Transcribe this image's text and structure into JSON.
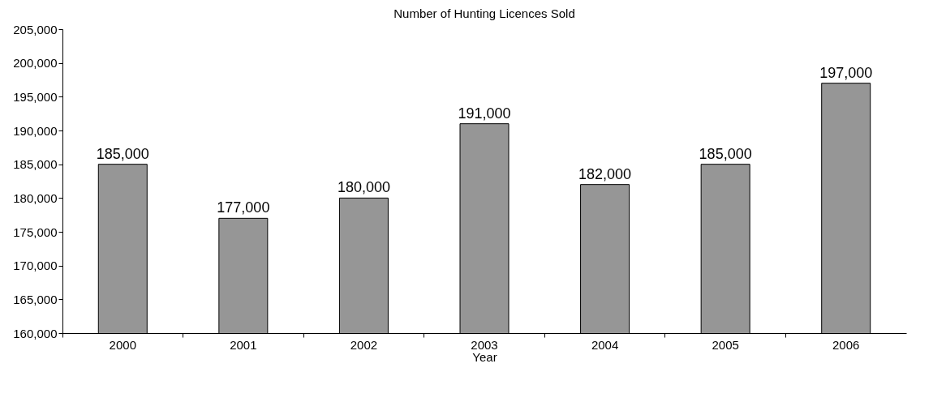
{
  "chart_data": {
    "type": "bar",
    "title": "Number of Hunting Licences Sold",
    "xlabel": "Year",
    "categories": [
      "2000",
      "2001",
      "2002",
      "2003",
      "2004",
      "2005",
      "2006"
    ],
    "values": [
      185000,
      177000,
      180000,
      191000,
      182000,
      185000,
      197000
    ],
    "value_labels": [
      "185,000",
      "177,000",
      "180,000",
      "191,000",
      "182,000",
      "185,000",
      "197,000"
    ],
    "color": "#969696",
    "ylim": [
      160000,
      205000
    ],
    "yticks": [
      {
        "value": 160000,
        "label": "160,000"
      },
      {
        "value": 165000,
        "label": "165,000"
      },
      {
        "value": 170000,
        "label": "170,000"
      },
      {
        "value": 175000,
        "label": "175,000"
      },
      {
        "value": 180000,
        "label": "180,000"
      },
      {
        "value": 185000,
        "label": "185,000"
      },
      {
        "value": 190000,
        "label": "190,000"
      },
      {
        "value": 195000,
        "label": "195,000"
      },
      {
        "value": 200000,
        "label": "200,000"
      },
      {
        "value": 205000,
        "label": "205,000"
      }
    ],
    "grid": false,
    "legend": false
  }
}
